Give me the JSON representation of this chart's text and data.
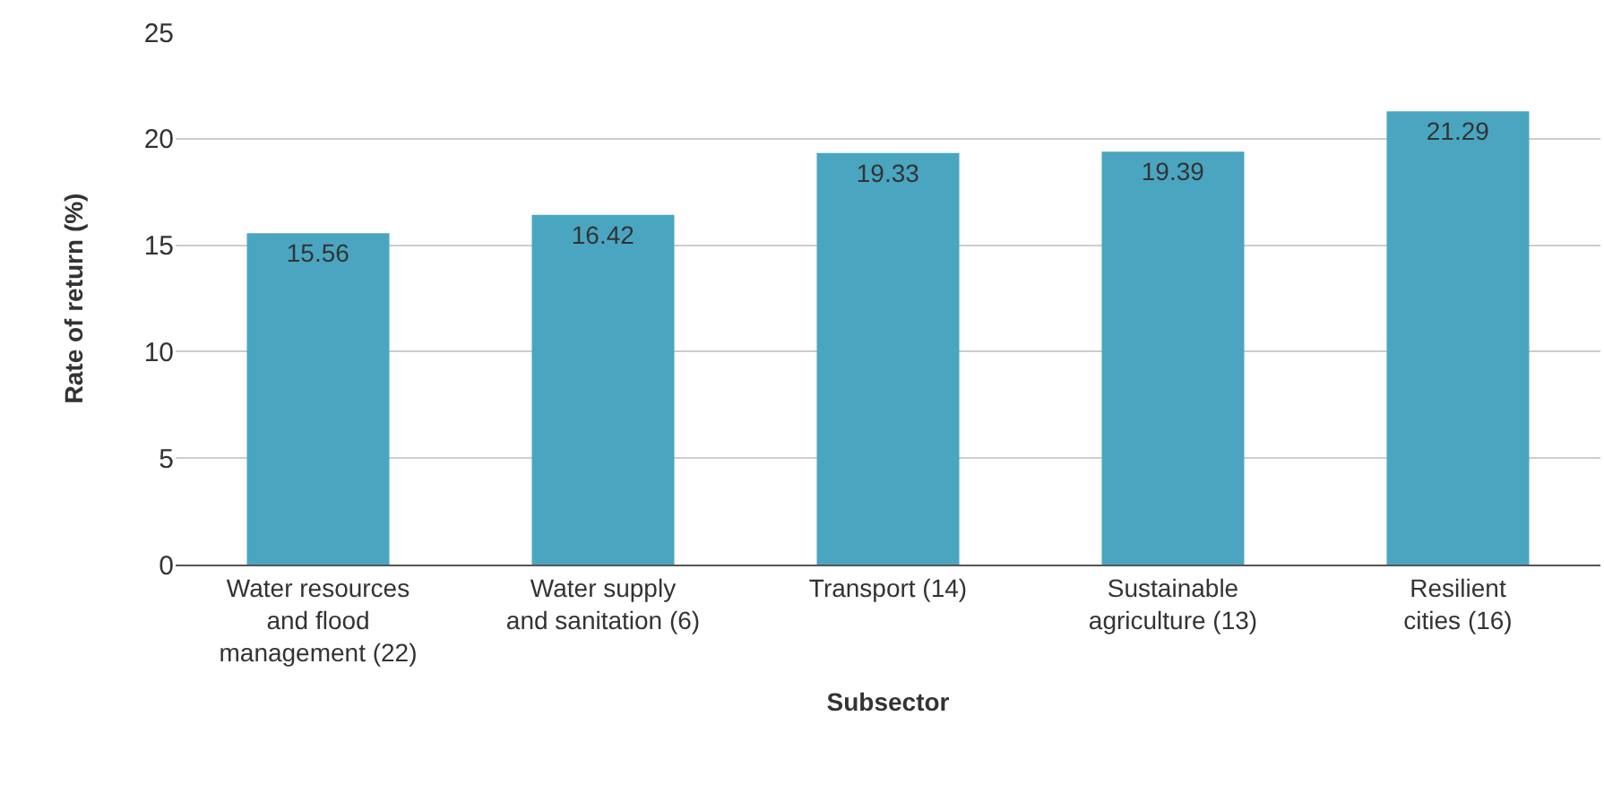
{
  "chart_data": {
    "type": "bar",
    "xlabel": "Subsector",
    "ylabel": "Rate of return (%)",
    "categories": [
      "Water resources\nand flood\nmanagement (22)",
      "Water supply\nand sanitation (6)",
      "Transport (14)",
      "Sustainable\nagriculture (13)",
      "Resilient\ncities (16)"
    ],
    "values": [
      15.56,
      16.42,
      19.33,
      19.39,
      21.29
    ],
    "color": "#4aa6c0",
    "ylim": [
      0,
      25
    ],
    "yticks": [
      0,
      5,
      10,
      15,
      20,
      25
    ],
    "grid": "y",
    "data_labels": true,
    "value_labels": [
      "15.56",
      "16.42",
      "19.33",
      "19.39",
      "21.29"
    ]
  }
}
